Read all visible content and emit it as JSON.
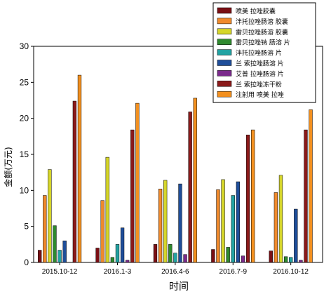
{
  "chart_data": {
    "type": "bar",
    "xlabel": "时间",
    "ylabel": "金额(万元)",
    "ylim": [
      0,
      30
    ],
    "yticks": [
      0,
      5,
      10,
      15,
      20,
      25,
      30
    ],
    "grid": false,
    "legend_position": "top-right",
    "categories": [
      "2015.10-12",
      "2016.1-3",
      "2016.4-6",
      "2016.7-9",
      "2016.10-12"
    ],
    "series": [
      {
        "name": "喷美 拉唑胶囊",
        "color": "#7a0f14",
        "values": [
          1.7,
          2.0,
          2.5,
          1.8,
          1.6
        ]
      },
      {
        "name": "泮托拉唑肠溶 胶囊",
        "color": "#f08a2c",
        "values": [
          9.3,
          8.6,
          10.2,
          10.1,
          9.7
        ]
      },
      {
        "name": "雷贝拉唑肠溶 胶囊",
        "color": "#d6d62a",
        "values": [
          12.9,
          14.6,
          11.4,
          11.5,
          12.1
        ]
      },
      {
        "name": "雷贝拉唑钠 肠溶 片",
        "color": "#2f8a2f",
        "values": [
          5.1,
          0.7,
          2.5,
          2.1,
          0.8
        ]
      },
      {
        "name": "泮托拉唑肠溶 片",
        "color": "#22a3a3",
        "values": [
          1.7,
          2.5,
          1.3,
          9.3,
          0.7
        ]
      },
      {
        "name": "兰 索拉唑肠溶 片",
        "color": "#1f4e9a",
        "values": [
          3.0,
          4.8,
          10.9,
          11.2,
          7.4
        ]
      },
      {
        "name": "艾普 拉唑肠溶 片",
        "color": "#7b2a8c",
        "values": [
          0.0,
          0.3,
          1.1,
          0.9,
          0.3
        ]
      },
      {
        "name": "兰 索拉唑冻干粉",
        "color": "#8b1a1a",
        "values": [
          22.4,
          18.4,
          20.9,
          17.7,
          18.4
        ]
      },
      {
        "name": "注射用 喷美 拉唑",
        "color": "#f3901f",
        "values": [
          26.0,
          22.1,
          22.8,
          18.4,
          21.2
        ]
      }
    ]
  }
}
